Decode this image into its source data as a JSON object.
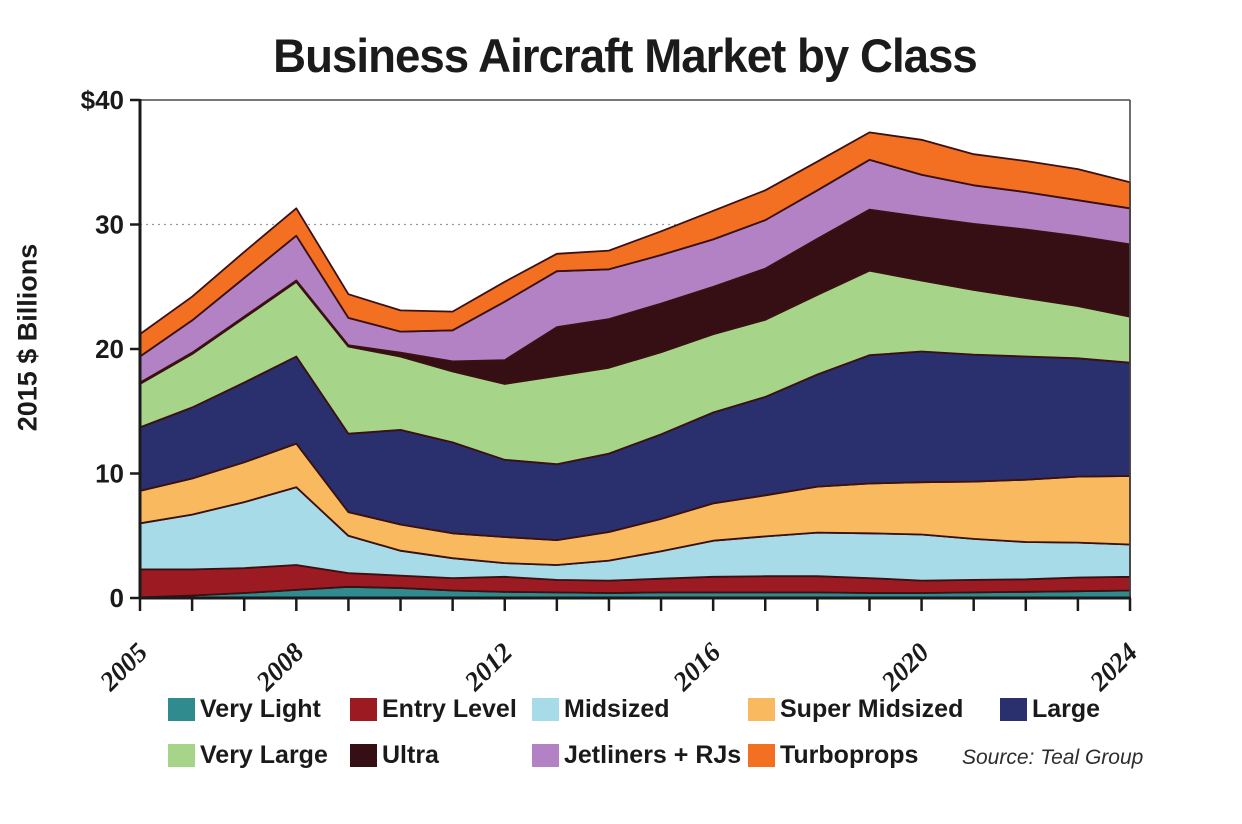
{
  "chart_data": {
    "type": "area",
    "stacked": true,
    "title": "Business Aircraft Market by Class",
    "ylabel": "2015 $ Billions",
    "source": "Source: Teal Group",
    "ylim": [
      0,
      40
    ],
    "grid": "dotted horizontal line at 30 (and 10, 20 hidden behind areas)",
    "grid_values": [
      10,
      20,
      30
    ],
    "legend_position": "bottom, two rows",
    "x": [
      2005,
      2006,
      2007,
      2008,
      2009,
      2010,
      2011,
      2012,
      2013,
      2014,
      2015,
      2016,
      2017,
      2018,
      2019,
      2020,
      2021,
      2022,
      2023,
      2024
    ],
    "x_labeled": [
      2005,
      2008,
      2012,
      2016,
      2020,
      2024
    ],
    "y_ticks": [
      {
        "value": 40,
        "label": "$40"
      },
      {
        "value": 30,
        "label": "30"
      },
      {
        "value": 20,
        "label": "20"
      },
      {
        "value": 10,
        "label": "10"
      },
      {
        "value": 0,
        "label": "0"
      }
    ],
    "series": [
      {
        "name": "Very Light",
        "color": "#2f8b8d",
        "values": [
          0.05,
          0.2,
          0.4,
          0.65,
          0.9,
          0.8,
          0.6,
          0.5,
          0.45,
          0.4,
          0.45,
          0.45,
          0.45,
          0.45,
          0.4,
          0.4,
          0.45,
          0.5,
          0.55,
          0.6
        ]
      },
      {
        "name": "Entry Level",
        "color": "#9c1b22",
        "values": [
          2.25,
          2.1,
          2.0,
          2.0,
          1.1,
          1.0,
          1.0,
          1.2,
          1.0,
          1.0,
          1.1,
          1.25,
          1.3,
          1.3,
          1.2,
          1.0,
          1.0,
          1.0,
          1.1,
          1.1
        ]
      },
      {
        "name": "Midsized",
        "color": "#a8dbe8",
        "values": [
          3.7,
          4.4,
          5.3,
          6.25,
          3.0,
          2.0,
          1.6,
          1.1,
          1.2,
          1.6,
          2.2,
          2.9,
          3.2,
          3.5,
          3.6,
          3.7,
          3.3,
          3.0,
          2.8,
          2.6
        ]
      },
      {
        "name": "Super Midsized",
        "color": "#f9b95e",
        "values": [
          2.6,
          2.9,
          3.2,
          3.5,
          1.9,
          2.1,
          2.0,
          2.1,
          2.0,
          2.3,
          2.6,
          3.0,
          3.3,
          3.7,
          4.0,
          4.2,
          4.6,
          5.0,
          5.3,
          5.5
        ]
      },
      {
        "name": "Large",
        "color": "#2a2f6e",
        "values": [
          5.1,
          5.7,
          6.4,
          7.0,
          6.3,
          7.6,
          7.3,
          6.2,
          6.1,
          6.3,
          6.8,
          7.3,
          7.9,
          9.0,
          10.3,
          10.5,
          10.2,
          9.9,
          9.5,
          9.1
        ]
      },
      {
        "name": "Very Large",
        "color": "#a6d488",
        "values": [
          3.5,
          4.3,
          5.2,
          6.0,
          7.0,
          5.9,
          5.7,
          6.1,
          7.1,
          6.9,
          6.6,
          6.3,
          6.2,
          6.4,
          6.8,
          5.7,
          5.2,
          4.7,
          4.2,
          3.7
        ]
      },
      {
        "name": "Ultra",
        "color": "#350f14",
        "values": [
          0.1,
          0.1,
          0.1,
          0.1,
          0.1,
          0.3,
          0.8,
          1.9,
          3.9,
          3.9,
          3.9,
          3.8,
          4.1,
          4.5,
          4.9,
          5.1,
          5.3,
          5.5,
          5.6,
          5.8
        ]
      },
      {
        "name": "Jetliners + RJs",
        "color": "#b282c4",
        "values": [
          2.1,
          2.6,
          3.1,
          3.6,
          2.2,
          1.7,
          2.5,
          4.7,
          4.5,
          4.0,
          3.9,
          3.8,
          3.9,
          3.9,
          4.0,
          3.4,
          3.1,
          3.0,
          2.9,
          2.9
        ]
      },
      {
        "name": "Turboprops",
        "color": "#f36f21",
        "values": [
          1.8,
          1.9,
          2.1,
          2.2,
          1.9,
          1.7,
          1.5,
          1.6,
          1.4,
          1.5,
          1.9,
          2.3,
          2.4,
          2.3,
          2.2,
          2.8,
          2.5,
          2.5,
          2.5,
          2.1
        ]
      }
    ],
    "colors": {
      "outline": "#3a1012",
      "axis": "#1a1a1a",
      "border": "#4a4a4a",
      "grid": "#9a9a9a",
      "text": "#1a1a1a"
    }
  }
}
